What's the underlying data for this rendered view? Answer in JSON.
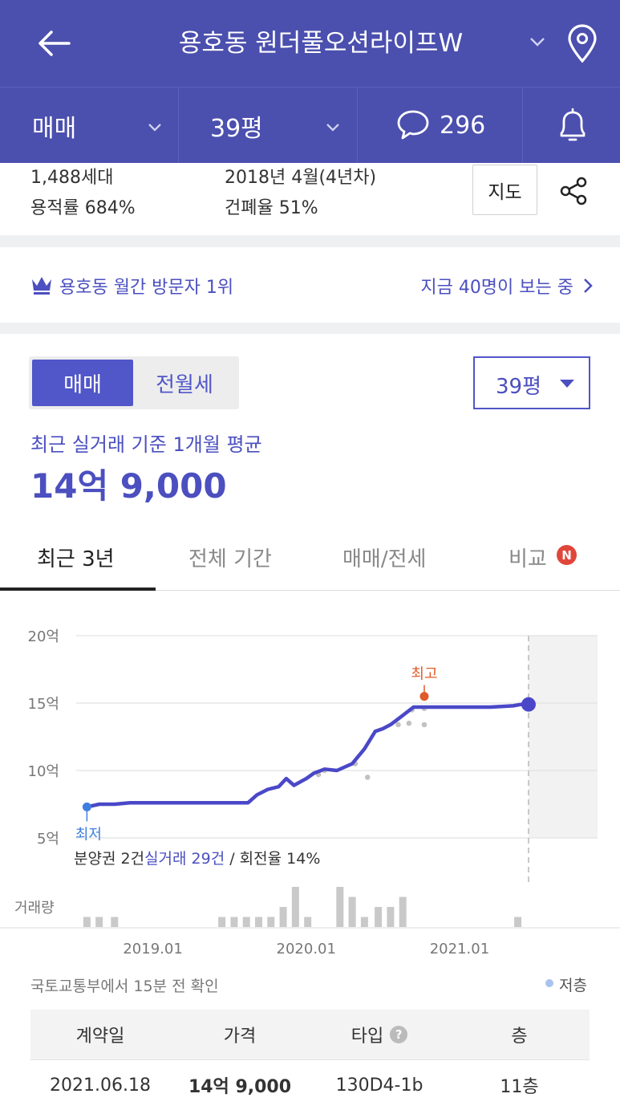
{
  "header": {
    "title": "용호동 원더풀오션라이프W"
  },
  "subbar": {
    "trade_type": "매매",
    "size": "39평",
    "comment_count": "296"
  },
  "info": {
    "households": "1,488세대",
    "floor_area_ratio": "용적률 684%",
    "built": "2018년 4월(4년차)",
    "coverage_ratio": "건폐율 51%",
    "map_button": "지도"
  },
  "visitors": {
    "rank": "용호동 월간 방문자 1위",
    "now": "지금 40명이 보는 중"
  },
  "filter": {
    "seg_sale": "매매",
    "seg_rent": "전월세",
    "size_select": "39평"
  },
  "average": {
    "label": "최근 실거래 기준 1개월 평균",
    "value": "14억 9,000"
  },
  "tabs": {
    "recent": "최근 3년",
    "all": "전체 기간",
    "sale_jeonse": "매매/전세",
    "compare": "비교",
    "compare_badge": "N"
  },
  "chart_note": {
    "presale": "분양권 2건",
    "actual": "실거래 29건",
    "turnover": " / 회전율 14%"
  },
  "chart_data": {
    "type": "line",
    "ylim": [
      5,
      20
    ],
    "yticks": [
      "20억",
      "15억",
      "10억",
      "5억"
    ],
    "ytick_values": [
      20,
      15,
      10,
      5
    ],
    "xticks": [
      "2019.01",
      "2020.01",
      "2021.01"
    ],
    "xtick_values": [
      2019.0,
      2020.0,
      2021.0
    ],
    "xlim": [
      2018.5,
      2021.9
    ],
    "labels": {
      "max": "최고",
      "min": "최저",
      "volume": "거래량"
    },
    "series": [
      {
        "x": [
          2018.57,
          2018.65,
          2018.75,
          2018.85,
          2019.0,
          2019.2,
          2019.4,
          2019.55,
          2019.62,
          2019.68,
          2019.75,
          2019.82,
          2019.87,
          2019.92,
          2020.0,
          2020.05,
          2020.12,
          2020.2,
          2020.3,
          2020.38,
          2020.45,
          2020.5,
          2020.55,
          2020.62,
          2020.7,
          2020.8,
          2020.9,
          2021.0,
          2021.2,
          2021.35,
          2021.4,
          2021.45
        ],
        "y": [
          7.3,
          7.5,
          7.5,
          7.6,
          7.6,
          7.6,
          7.6,
          7.6,
          7.6,
          8.2,
          8.6,
          8.8,
          9.4,
          8.9,
          9.4,
          9.8,
          10.1,
          10.0,
          10.5,
          11.6,
          12.9,
          13.1,
          13.4,
          14.0,
          14.7,
          14.7,
          14.7,
          14.7,
          14.7,
          14.8,
          14.9,
          14.9
        ]
      }
    ],
    "points": [
      {
        "x": 2020.08,
        "y": 9.7
      },
      {
        "x": 2020.12,
        "y": 10.0
      },
      {
        "x": 2020.32,
        "y": 10.5
      },
      {
        "x": 2020.4,
        "y": 9.5
      },
      {
        "x": 2020.6,
        "y": 13.4
      },
      {
        "x": 2020.67,
        "y": 13.5
      },
      {
        "x": 2020.69,
        "y": 14.5
      },
      {
        "x": 2020.77,
        "y": 13.4
      },
      {
        "x": 2020.77,
        "y": 14.6
      }
    ],
    "max_point": {
      "x": 2020.77,
      "y": 15.5
    },
    "min_point": {
      "x": 2018.57,
      "y": 7.3
    },
    "current_point": {
      "x": 2021.45,
      "y": 14.9
    },
    "volume": {
      "x": [
        2018.57,
        2018.65,
        2018.75,
        2019.45,
        2019.53,
        2019.61,
        2019.69,
        2019.77,
        2019.85,
        2019.93,
        2020.01,
        2020.22,
        2020.3,
        2020.38,
        2020.47,
        2020.55,
        2020.63,
        2020.72,
        2021.38
      ],
      "values": [
        1,
        1,
        1,
        1,
        1,
        1,
        1,
        1,
        2,
        4,
        1,
        4,
        3,
        1,
        2,
        2,
        3,
        0,
        1
      ]
    }
  },
  "source": "국토교통부에서 15분 전 확인",
  "legend": "저층",
  "table": {
    "headers": [
      "계약일",
      "가격",
      "타입",
      "층"
    ],
    "rows": [
      [
        "2021.06.18",
        "14억 9,000",
        "130D4-1b",
        "11층"
      ]
    ]
  },
  "colors": {
    "header_bg": "#4b4fae",
    "accent": "#4b4fbf",
    "line": "#4a48c8",
    "max": "#e05a2a",
    "min": "#3f7ee0"
  }
}
